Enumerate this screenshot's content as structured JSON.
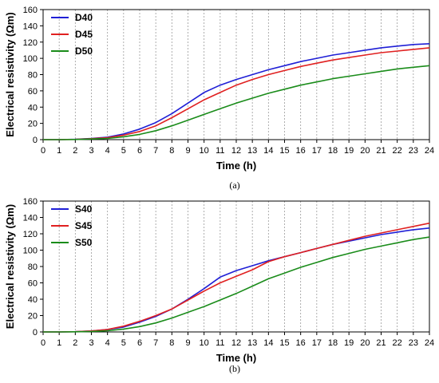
{
  "chart_data": [
    {
      "type": "line",
      "caption": "(a)",
      "xlabel": "Time (h)",
      "ylabel": "Electrical resistivity (Ωm)",
      "xlim": [
        0,
        24
      ],
      "ylim": [
        0,
        160
      ],
      "xticks": [
        0,
        1,
        2,
        3,
        4,
        5,
        6,
        7,
        8,
        9,
        10,
        11,
        12,
        13,
        14,
        15,
        16,
        17,
        18,
        19,
        20,
        21,
        22,
        23,
        24
      ],
      "yticks": [
        0,
        20,
        40,
        60,
        80,
        100,
        120,
        140,
        160
      ],
      "grid": "vertical dashed at each hour",
      "legend_position": "top-left",
      "series": [
        {
          "name": "D40",
          "color": "#1f1fd6",
          "x": [
            0,
            1,
            2,
            3,
            4,
            5,
            6,
            7,
            8,
            9,
            10,
            11,
            12,
            13,
            14,
            15,
            16,
            17,
            18,
            19,
            20,
            21,
            22,
            23,
            24
          ],
          "y": [
            0,
            0,
            0.5,
            1.5,
            3,
            7,
            13,
            21,
            32,
            45,
            58,
            67,
            74,
            80,
            86,
            91,
            96,
            100,
            104,
            107,
            110,
            113,
            115,
            117,
            118
          ]
        },
        {
          "name": "D45",
          "color": "#e02020",
          "x": [
            0,
            1,
            2,
            3,
            4,
            5,
            6,
            7,
            8,
            9,
            10,
            11,
            12,
            13,
            14,
            15,
            16,
            17,
            18,
            19,
            20,
            21,
            22,
            23,
            24
          ],
          "y": [
            0,
            0,
            0.3,
            1.2,
            2.5,
            5.5,
            10,
            17,
            27,
            38,
            49,
            58,
            67,
            74,
            80,
            85,
            90,
            94,
            98,
            101,
            104,
            107,
            109,
            111,
            113
          ]
        },
        {
          "name": "D50",
          "color": "#1a8c1a",
          "x": [
            0,
            1,
            2,
            3,
            4,
            5,
            6,
            7,
            8,
            9,
            10,
            11,
            12,
            13,
            14,
            15,
            16,
            17,
            18,
            19,
            20,
            21,
            22,
            23,
            24
          ],
          "y": [
            0,
            0,
            0.2,
            0.8,
            1.5,
            3.5,
            6.5,
            11,
            17,
            24,
            31,
            38,
            45,
            51,
            57,
            62,
            67,
            71,
            75,
            78,
            81,
            84,
            87,
            89,
            91
          ]
        }
      ]
    },
    {
      "type": "line",
      "caption": "(b)",
      "xlabel": "Time (h)",
      "ylabel": "Electrical resistivity (Ωm)",
      "xlim": [
        0,
        24
      ],
      "ylim": [
        0,
        160
      ],
      "xticks": [
        0,
        1,
        2,
        3,
        4,
        5,
        6,
        7,
        8,
        9,
        10,
        11,
        12,
        13,
        14,
        15,
        16,
        17,
        18,
        19,
        20,
        21,
        22,
        23,
        24
      ],
      "yticks": [
        0,
        20,
        40,
        60,
        80,
        100,
        120,
        140,
        160
      ],
      "grid": "vertical dashed at each hour",
      "legend_position": "top-left",
      "series": [
        {
          "name": "S40",
          "color": "#1f1fd6",
          "x": [
            0,
            1,
            2,
            3,
            4,
            5,
            6,
            7,
            8,
            9,
            10,
            11,
            12,
            13,
            14,
            15,
            16,
            17,
            18,
            19,
            20,
            21,
            22,
            23,
            24
          ],
          "y": [
            0,
            0,
            0.3,
            1.2,
            3,
            6,
            12,
            19,
            28,
            40,
            53,
            67,
            75,
            81,
            87,
            92,
            97,
            102,
            107,
            111,
            115,
            119,
            122,
            125,
            127
          ]
        },
        {
          "name": "S45",
          "color": "#e02020",
          "x": [
            0,
            1,
            2,
            3,
            4,
            5,
            6,
            7,
            8,
            9,
            10,
            11,
            12,
            13,
            14,
            15,
            16,
            17,
            18,
            19,
            20,
            21,
            22,
            23,
            24
          ],
          "y": [
            0,
            0,
            0.3,
            1.2,
            3,
            7,
            13,
            20,
            28,
            39,
            50,
            60,
            68,
            76,
            86,
            92,
            97,
            102,
            107,
            112,
            117,
            121,
            125,
            129,
            133
          ]
        },
        {
          "name": "S50",
          "color": "#1a8c1a",
          "x": [
            0,
            1,
            2,
            3,
            4,
            5,
            6,
            7,
            8,
            9,
            10,
            11,
            12,
            13,
            14,
            15,
            16,
            17,
            18,
            19,
            20,
            21,
            22,
            23,
            24
          ],
          "y": [
            0,
            0,
            0.2,
            0.6,
            1.5,
            3.5,
            6.5,
            11,
            17,
            24,
            31,
            39,
            47,
            56,
            65,
            72,
            79,
            85,
            91,
            96,
            101,
            105,
            109,
            113,
            116
          ]
        }
      ]
    }
  ]
}
